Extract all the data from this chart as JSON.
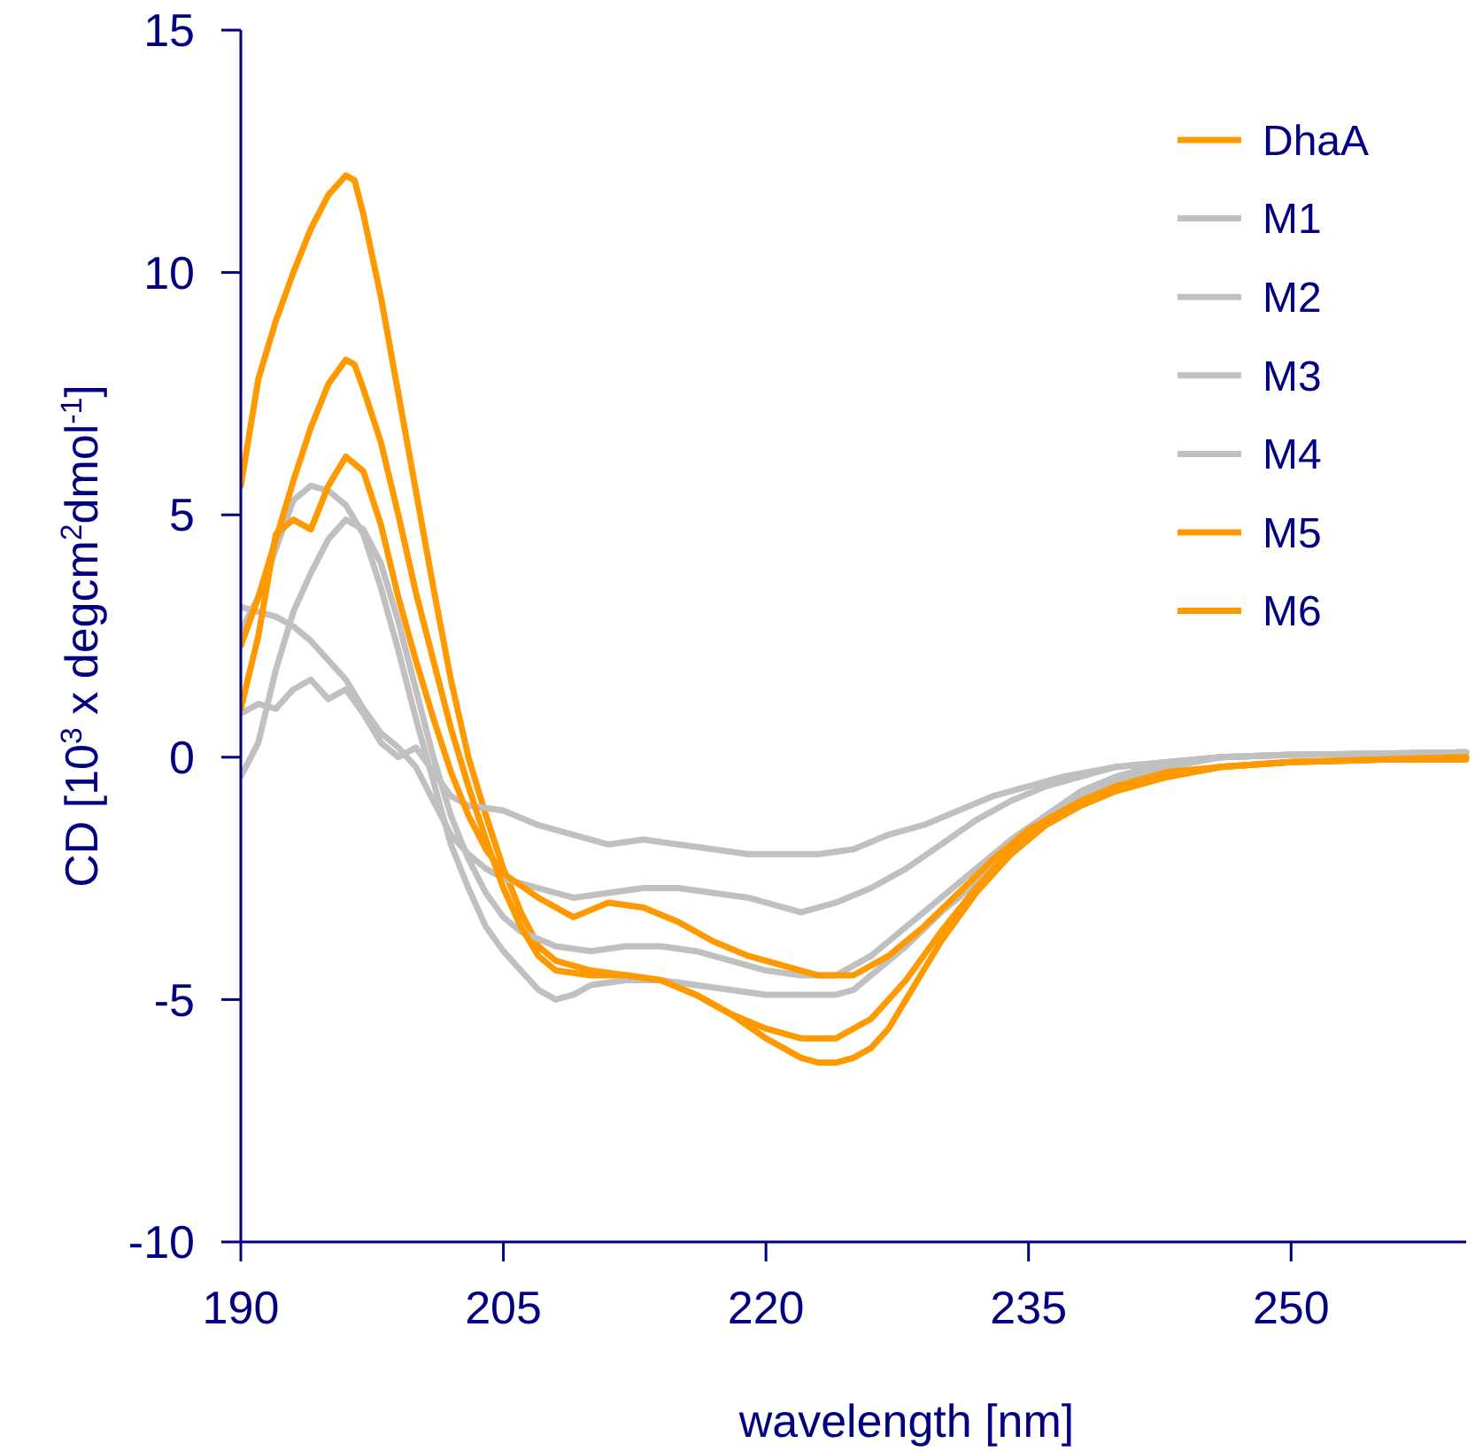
{
  "chart_data": {
    "type": "line",
    "xlabel": "wavelength [nm]",
    "ylabel": "CD [10$^{3}$ x degcm$^{2}$dmol$^{-1}$]",
    "xlim": [
      190,
      260
    ],
    "xticks": [
      190,
      205,
      220,
      235,
      250
    ],
    "ylim": [
      -10,
      15
    ],
    "yticks": [
      -10,
      -5,
      0,
      5,
      10,
      15
    ],
    "grid": false,
    "legend": "top right",
    "marker": "none",
    "line_style": "solid",
    "series": [
      {
        "name": "DhaA",
        "color": "#ff9900",
        "x": [
          190,
          191,
          192,
          193,
          194,
          195,
          196,
          196.5,
          197,
          198,
          199,
          200,
          201,
          202,
          203,
          204,
          205,
          206,
          207,
          208,
          210,
          212,
          214,
          216,
          218,
          220,
          222,
          223,
          224,
          225,
          226,
          227,
          228,
          229,
          230,
          232,
          234,
          236,
          238,
          240,
          243,
          246,
          250,
          255,
          260
        ],
        "values": [
          5.6,
          7.8,
          9.0,
          10.0,
          10.9,
          11.6,
          12.0,
          11.9,
          11.2,
          9.5,
          7.5,
          5.5,
          3.5,
          1.6,
          0,
          -1.2,
          -2.3,
          -3.2,
          -3.9,
          -4.2,
          -4.4,
          -4.5,
          -4.6,
          -4.9,
          -5.3,
          -5.8,
          -6.2,
          -6.3,
          -6.3,
          -6.2,
          -6.0,
          -5.6,
          -5.0,
          -4.4,
          -3.8,
          -2.8,
          -2.0,
          -1.4,
          -1.0,
          -0.7,
          -0.4,
          -0.2,
          -0.1,
          -0.05,
          -0.05
        ]
      },
      {
        "name": "M1",
        "color": "#c0c0c0",
        "x": [
          190,
          191,
          192,
          193,
          194,
          195,
          196,
          197,
          198,
          199,
          200,
          201,
          202,
          203,
          204,
          205,
          206,
          207,
          208,
          209,
          210,
          212,
          214,
          216,
          218,
          220,
          222,
          224,
          225,
          226,
          228,
          230,
          232,
          234,
          236,
          238,
          240,
          243,
          246,
          250,
          260
        ],
        "values": [
          2.6,
          3.3,
          4.3,
          5.3,
          5.6,
          5.5,
          5.2,
          4.6,
          3.5,
          2.2,
          0.8,
          -0.5,
          -1.8,
          -2.7,
          -3.5,
          -4.0,
          -4.4,
          -4.8,
          -5.0,
          -4.9,
          -4.7,
          -4.6,
          -4.6,
          -4.7,
          -4.8,
          -4.9,
          -4.9,
          -4.9,
          -4.8,
          -4.5,
          -3.9,
          -3.2,
          -2.6,
          -1.9,
          -1.3,
          -0.8,
          -0.5,
          -0.2,
          0,
          0.05,
          0.1
        ]
      },
      {
        "name": "M2",
        "color": "#c0c0c0",
        "x": [
          190,
          191,
          192,
          193,
          194,
          195,
          196,
          197,
          198,
          199,
          200,
          201,
          202,
          203,
          204,
          205,
          206,
          208,
          210,
          212,
          214,
          216,
          218,
          220,
          222,
          224,
          226,
          228,
          230,
          232,
          234,
          236,
          238,
          240,
          243,
          246,
          250,
          260
        ],
        "values": [
          -0.4,
          0.3,
          1.8,
          3.0,
          3.8,
          4.5,
          4.9,
          4.7,
          4.0,
          2.8,
          1.4,
          0,
          -1.2,
          -2.1,
          -2.8,
          -3.3,
          -3.6,
          -3.9,
          -4.0,
          -3.9,
          -3.9,
          -4.0,
          -4.2,
          -4.4,
          -4.5,
          -4.5,
          -4.1,
          -3.5,
          -2.9,
          -2.3,
          -1.7,
          -1.2,
          -0.7,
          -0.4,
          -0.1,
          0,
          0.05,
          0.1
        ]
      },
      {
        "name": "M3",
        "color": "#c0c0c0",
        "x": [
          190,
          191,
          192,
          193,
          194,
          195,
          196,
          197,
          198,
          199,
          200,
          201,
          202,
          203,
          204,
          205,
          207,
          209,
          211,
          213,
          215,
          217,
          219,
          221,
          222,
          224,
          226,
          228,
          230,
          232,
          234,
          236,
          238,
          240,
          243,
          246,
          250,
          260
        ],
        "values": [
          3.1,
          3.0,
          2.9,
          2.7,
          2.4,
          2.0,
          1.6,
          1.0,
          0.5,
          0.2,
          -0.2,
          -0.9,
          -1.6,
          -2.0,
          -2.3,
          -2.5,
          -2.7,
          -2.9,
          -2.8,
          -2.7,
          -2.7,
          -2.8,
          -2.9,
          -3.1,
          -3.2,
          -3.0,
          -2.7,
          -2.3,
          -1.8,
          -1.3,
          -0.9,
          -0.6,
          -0.4,
          -0.2,
          -0.1,
          0,
          0.05,
          0.1
        ]
      },
      {
        "name": "M4",
        "color": "#c0c0c0",
        "x": [
          190,
          191,
          192,
          193,
          194,
          195,
          196,
          197,
          198,
          199,
          200,
          201,
          202,
          203,
          205,
          207,
          209,
          211,
          213,
          215,
          217,
          219,
          221,
          223,
          225,
          227,
          229,
          231,
          233,
          235,
          237,
          240,
          243,
          246,
          250,
          260
        ],
        "values": [
          0.9,
          1.1,
          1.0,
          1.4,
          1.6,
          1.2,
          1.4,
          0.9,
          0.3,
          0,
          0.2,
          -0.3,
          -0.8,
          -1.0,
          -1.1,
          -1.4,
          -1.6,
          -1.8,
          -1.7,
          -1.8,
          -1.9,
          -2.0,
          -2.0,
          -2.0,
          -1.9,
          -1.6,
          -1.4,
          -1.1,
          -0.8,
          -0.6,
          -0.4,
          -0.2,
          -0.1,
          0,
          0.05,
          0.1
        ]
      },
      {
        "name": "M5",
        "color": "#ff9900",
        "x": [
          190,
          191,
          192,
          193,
          194,
          195,
          196,
          196.5,
          197,
          198,
          199,
          200,
          201,
          202,
          203,
          204,
          205,
          206,
          207,
          208,
          210,
          212,
          214,
          216,
          218,
          220,
          222,
          224,
          226,
          228,
          230,
          232,
          234,
          236,
          238,
          240,
          243,
          246,
          250,
          260
        ],
        "values": [
          2.3,
          3.3,
          4.5,
          5.7,
          6.8,
          7.7,
          8.2,
          8.1,
          7.6,
          6.5,
          5.0,
          3.4,
          2.0,
          0.6,
          -0.6,
          -1.7,
          -2.7,
          -3.5,
          -4.1,
          -4.4,
          -4.5,
          -4.5,
          -4.6,
          -4.9,
          -5.3,
          -5.6,
          -5.8,
          -5.8,
          -5.4,
          -4.6,
          -3.6,
          -2.7,
          -1.9,
          -1.3,
          -0.9,
          -0.6,
          -0.4,
          -0.2,
          -0.1,
          0
        ]
      },
      {
        "name": "M6",
        "color": "#ff9900",
        "x": [
          190,
          191,
          192,
          193,
          194,
          195,
          196,
          197,
          198,
          199,
          200,
          201,
          202,
          203,
          204,
          205,
          207,
          209,
          211,
          213,
          215,
          217,
          219,
          221,
          223,
          225,
          227,
          229,
          231,
          233,
          235,
          237,
          240,
          243,
          246,
          250,
          260
        ],
        "values": [
          1.0,
          2.5,
          4.6,
          4.9,
          4.7,
          5.6,
          6.2,
          5.9,
          4.8,
          3.3,
          2.0,
          0.8,
          -0.3,
          -1.2,
          -1.9,
          -2.4,
          -2.9,
          -3.3,
          -3.0,
          -3.1,
          -3.4,
          -3.8,
          -4.1,
          -4.3,
          -4.5,
          -4.5,
          -4.1,
          -3.5,
          -2.8,
          -2.1,
          -1.5,
          -1.1,
          -0.6,
          -0.3,
          -0.2,
          -0.1,
          0
        ]
      }
    ]
  }
}
